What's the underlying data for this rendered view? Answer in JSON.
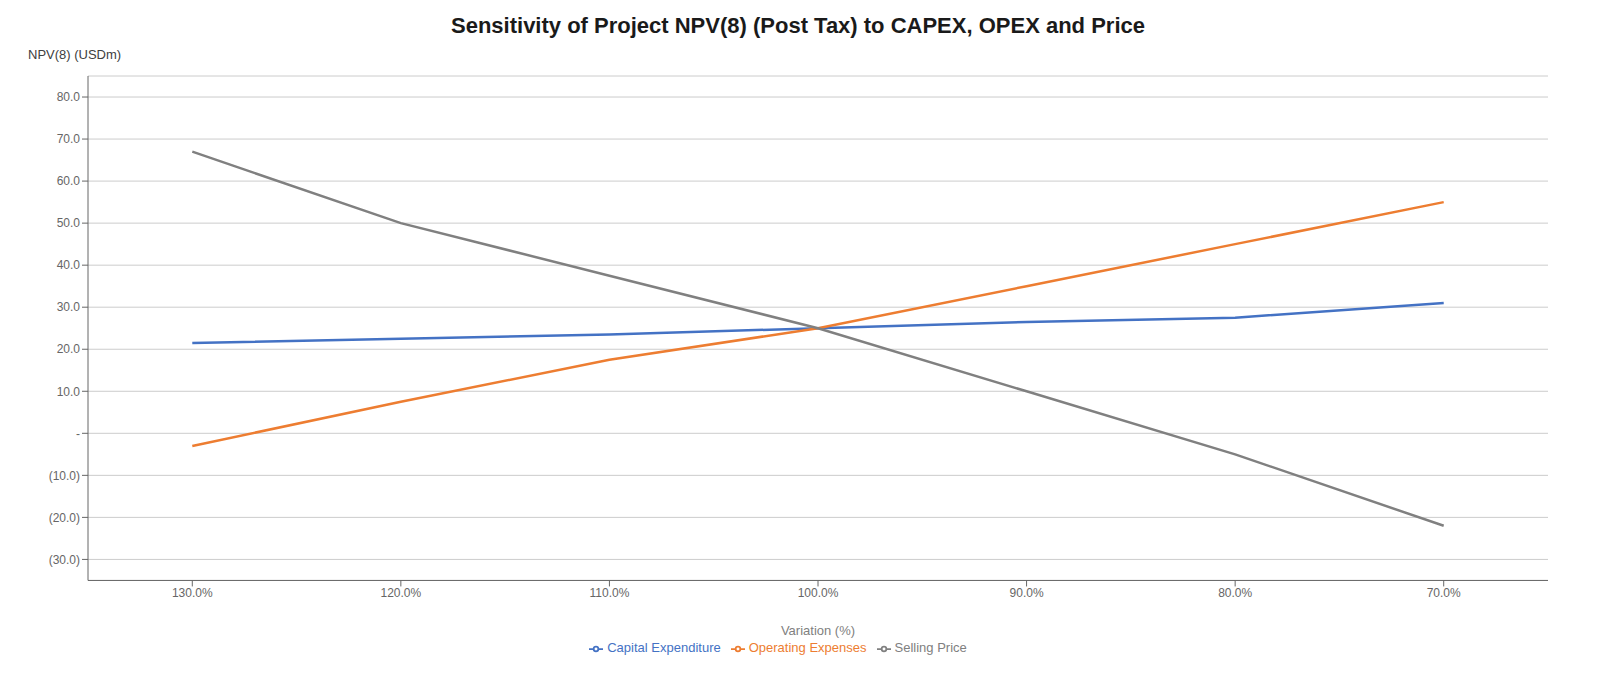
{
  "chart_data": {
    "type": "line",
    "title": "Sensitivity of Project NPV(8) (Post Tax) to CAPEX, OPEX and Price",
    "ylabel": "NPV(8) (USDm)",
    "xlabel": "Variation (%)",
    "x": [
      130,
      120,
      110,
      100,
      90,
      80,
      70
    ],
    "xlim": [
      135,
      65
    ],
    "xticks": [
      {
        "value": 130,
        "label": "130.0%"
      },
      {
        "value": 120,
        "label": "120.0%"
      },
      {
        "value": 110,
        "label": "110.0%"
      },
      {
        "value": 100,
        "label": "100.0%"
      },
      {
        "value": 90,
        "label": "90.0%"
      },
      {
        "value": 80,
        "label": "80.0%"
      },
      {
        "value": 70,
        "label": "70.0%"
      }
    ],
    "series": [
      {
        "name": "Capital Expenditure",
        "color": "#4472C4",
        "values": [
          21.5,
          22.5,
          23.5,
          25.0,
          26.5,
          27.5,
          31.0
        ]
      },
      {
        "name": "Operating Expenses",
        "color": "#ED7D31",
        "values": [
          -3.0,
          7.5,
          17.5,
          25.0,
          35.0,
          45.0,
          55.0
        ]
      },
      {
        "name": "Selling Price",
        "color": "#808080",
        "values": [
          67.0,
          50.0,
          37.5,
          25.0,
          10.0,
          -5.0,
          -22.0
        ]
      }
    ],
    "ylim": [
      -35,
      85
    ],
    "yticks": [
      {
        "value": 80,
        "label": "80.0"
      },
      {
        "value": 70,
        "label": "70.0"
      },
      {
        "value": 60,
        "label": "60.0"
      },
      {
        "value": 50,
        "label": "50.0"
      },
      {
        "value": 40,
        "label": "40.0"
      },
      {
        "value": 30,
        "label": "30.0"
      },
      {
        "value": 20,
        "label": "20.0"
      },
      {
        "value": 10,
        "label": "10.0"
      },
      {
        "value": 0,
        "label": "-"
      },
      {
        "value": -10,
        "label": "(10.0)"
      },
      {
        "value": -20,
        "label": "(20.0)"
      },
      {
        "value": -30,
        "label": "(30.0)"
      }
    ],
    "grid": true,
    "legend": "bottom"
  }
}
